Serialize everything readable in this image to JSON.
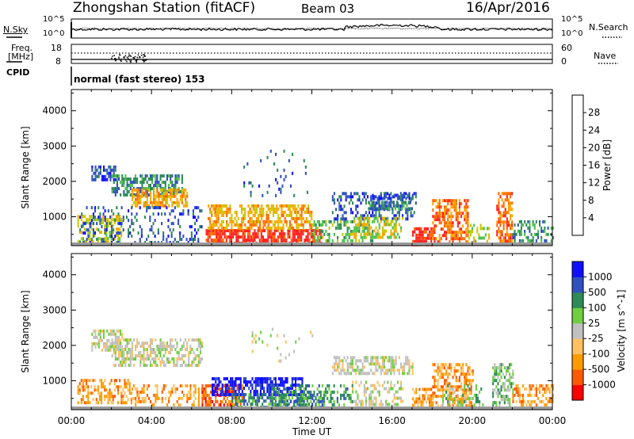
{
  "header": {
    "station": "Zhongshan Station (fitACF)",
    "beam": "Beam 03",
    "date": "16/Apr/2016"
  },
  "strip_labels": {
    "nsky": "N.Sky",
    "nsearch": "N.Search",
    "freq_line1": "Freq.",
    "freq_line2": "[MHz]",
    "nave": "Nave",
    "cpid": "CPID",
    "cpid_value": "normal (fast stereo) 153"
  },
  "strip_ticks": {
    "noise_left": [
      "10^5",
      "10^0"
    ],
    "noise_right": [
      "10^5",
      "10^0"
    ],
    "freq_left": [
      "18",
      "8"
    ],
    "nave_right": [
      "60",
      "0"
    ]
  },
  "colors": {
    "power": [
      "#1010ff",
      "#3050c0",
      "#2e8b57",
      "#4fc04f",
      "#c8c800",
      "#ffa500",
      "#ff6a00",
      "#ff2020"
    ],
    "velocity": [
      "#ff0000",
      "#ff5a00",
      "#ff9a00",
      "#ffc060",
      "#c0c0c0",
      "#6fcf3f",
      "#2e8b57",
      "#3050c0",
      "#1010ff"
    ]
  },
  "chart_data": [
    {
      "type": "heatmap",
      "title": "Power",
      "ylabel": "Slant Range [km]",
      "ylim": [
        180,
        4600
      ],
      "yticks": [
        "1000",
        "2000",
        "3000",
        "4000"
      ],
      "xticks": [
        "00:00",
        "04:00",
        "08:00",
        "12:00",
        "16:00",
        "20:00",
        "00:00"
      ],
      "xlim_hours": [
        0,
        24
      ],
      "colorbar": {
        "label": "Power [dB]",
        "range": [
          0,
          32
        ],
        "tick_labels": [
          "4",
          "8",
          "12",
          "16",
          "20",
          "24",
          "28"
        ]
      },
      "regions": [
        {
          "t": [
            1.0,
            2.2
          ],
          "r": [
            2050,
            2450
          ],
          "level": 1,
          "density": 0.55
        },
        {
          "t": [
            2.0,
            5.5
          ],
          "r": [
            1600,
            2200
          ],
          "level": 2,
          "density": 0.6
        },
        {
          "t": [
            3.0,
            5.8
          ],
          "r": [
            1350,
            1800
          ],
          "level": 5,
          "density": 0.7
        },
        {
          "t": [
            0.3,
            2.5
          ],
          "r": [
            300,
            1050
          ],
          "level": 4,
          "density": 0.5
        },
        {
          "t": [
            0.4,
            6.5
          ],
          "r": [
            250,
            1300
          ],
          "level": 1,
          "density": 0.25
        },
        {
          "t": [
            6.7,
            12.5
          ],
          "r": [
            250,
            650
          ],
          "level": 7,
          "density": 0.8
        },
        {
          "t": [
            6.8,
            12.0
          ],
          "r": [
            650,
            1350
          ],
          "level": 5,
          "density": 0.6
        },
        {
          "t": [
            12.0,
            15.0
          ],
          "r": [
            250,
            900
          ],
          "level": 3,
          "density": 0.45
        },
        {
          "t": [
            13.0,
            17.2
          ],
          "r": [
            900,
            1700
          ],
          "level": 1,
          "density": 0.35
        },
        {
          "t": [
            14.8,
            17.0
          ],
          "r": [
            1250,
            1450
          ],
          "level": 2,
          "density": 0.75
        },
        {
          "t": [
            15.0,
            17.0
          ],
          "r": [
            1500,
            1650
          ],
          "level": 1,
          "density": 0.7
        },
        {
          "t": [
            14.0,
            16.5
          ],
          "r": [
            400,
            1000
          ],
          "level": 4,
          "density": 0.5
        },
        {
          "t": [
            17.0,
            18.0
          ],
          "r": [
            200,
            700
          ],
          "level": 7,
          "density": 0.7
        },
        {
          "t": [
            18.0,
            19.8
          ],
          "r": [
            300,
            1500
          ],
          "level": 6,
          "density": 0.6
        },
        {
          "t": [
            19.8,
            20.8
          ],
          "r": [
            200,
            800
          ],
          "level": 4,
          "density": 0.35
        },
        {
          "t": [
            21.2,
            22.0
          ],
          "r": [
            300,
            1700
          ],
          "level": 6,
          "density": 0.6
        },
        {
          "t": [
            22.0,
            24.0
          ],
          "r": [
            250,
            900
          ],
          "level": 2,
          "density": 0.45
        },
        {
          "t": [
            8.5,
            12.0
          ],
          "r": [
            1600,
            2900
          ],
          "level": 1,
          "density": 0.06
        }
      ]
    },
    {
      "type": "heatmap",
      "title": "Velocity",
      "ylabel": "Slant Range [km]",
      "ylim": [
        180,
        4600
      ],
      "yticks": [
        "1000",
        "2000",
        "3000",
        "4000"
      ],
      "xticks": [
        "00:00",
        "04:00",
        "08:00",
        "12:00",
        "16:00",
        "20:00",
        "00:00"
      ],
      "xlim_hours": [
        0,
        24
      ],
      "xlabel": "Time UT",
      "colorbar": {
        "label": "Velocity [m s^-1]",
        "range": [
          -1000,
          1000
        ],
        "tick_labels": [
          "-1000",
          "-500",
          "-100",
          "-25",
          "25",
          "100",
          "500",
          "1000"
        ]
      },
      "regions": [
        {
          "t": [
            1.0,
            2.5
          ],
          "r": [
            1900,
            2450
          ],
          "level": 4,
          "density": 0.6
        },
        {
          "t": [
            2.0,
            6.5
          ],
          "r": [
            1450,
            2200
          ],
          "level": 4,
          "density": 0.55
        },
        {
          "t": [
            0.3,
            3.0
          ],
          "r": [
            350,
            1050
          ],
          "level": 2,
          "density": 0.5
        },
        {
          "t": [
            3.0,
            6.5
          ],
          "r": [
            250,
            900
          ],
          "level": 2,
          "density": 0.35
        },
        {
          "t": [
            6.5,
            8.5
          ],
          "r": [
            200,
            900
          ],
          "level": 1,
          "density": 0.6
        },
        {
          "t": [
            7.0,
            11.5
          ],
          "r": [
            600,
            1100
          ],
          "level": 8,
          "density": 0.65
        },
        {
          "t": [
            8.0,
            12.5
          ],
          "r": [
            250,
            650
          ],
          "level": 6,
          "density": 0.55
        },
        {
          "t": [
            10.0,
            14.0
          ],
          "r": [
            250,
            900
          ],
          "level": 6,
          "density": 0.4
        },
        {
          "t": [
            13.0,
            17.0
          ],
          "r": [
            1200,
            1700
          ],
          "level": 4,
          "density": 0.55
        },
        {
          "t": [
            14.0,
            16.5
          ],
          "r": [
            350,
            1000
          ],
          "level": 4,
          "density": 0.4
        },
        {
          "t": [
            17.0,
            18.0
          ],
          "r": [
            200,
            800
          ],
          "level": 2,
          "density": 0.6
        },
        {
          "t": [
            18.0,
            20.0
          ],
          "r": [
            300,
            1500
          ],
          "level": 2,
          "density": 0.55
        },
        {
          "t": [
            18.5,
            20.5
          ],
          "r": [
            300,
            900
          ],
          "level": 5,
          "density": 0.3
        },
        {
          "t": [
            21.0,
            22.0
          ],
          "r": [
            300,
            1500
          ],
          "level": 5,
          "density": 0.5
        },
        {
          "t": [
            22.0,
            24.0
          ],
          "r": [
            300,
            900
          ],
          "level": 2,
          "density": 0.5
        },
        {
          "t": [
            9.0,
            12.0
          ],
          "r": [
            1600,
            2500
          ],
          "level": 4,
          "density": 0.06
        }
      ]
    }
  ]
}
